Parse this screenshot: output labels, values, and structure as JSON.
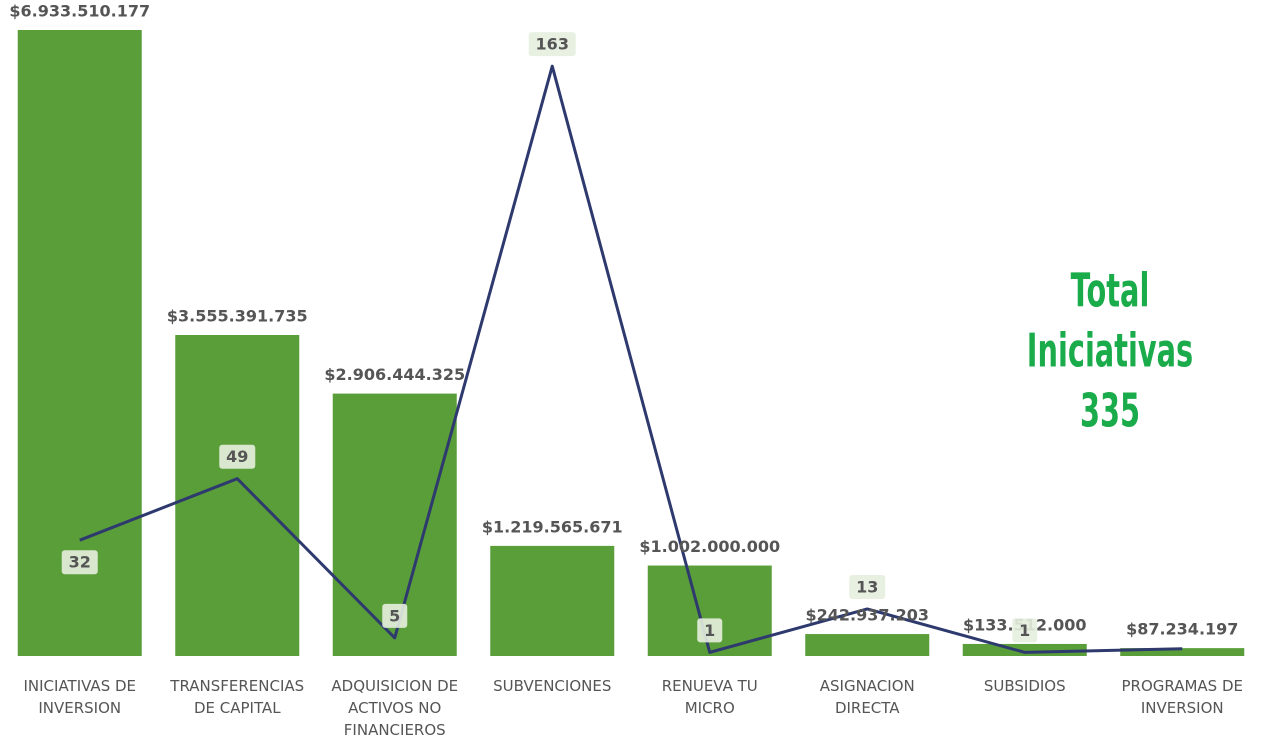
{
  "chart_data": {
    "type": "bar-line",
    "categories": [
      "INICIATIVAS DE INVERSION",
      "TRANSFERENCIAS DE CAPITAL",
      "ADQUISICION DE ACTIVOS NO FINANCIEROS",
      "SUBVENCIONES",
      "RENUEVA TU MICRO",
      "ASIGNACION DIRECTA",
      "SUBSIDIOS",
      "PROGRAMAS DE INVERSION"
    ],
    "series": [
      {
        "type": "bar",
        "color": "#5a9e3a",
        "values": [
          6933510177,
          3555391735,
          2906444325,
          1219565671,
          1002000000,
          242937203,
          133512000,
          87234197
        ],
        "value_labels": [
          "$6.933.510.177",
          "$3.555.391.735",
          "$2.906.444.325",
          "$1.219.565.671",
          "$1.002.000.000",
          "$242.937.203",
          "$133.512.000",
          "$87.234.197"
        ]
      },
      {
        "type": "line",
        "axis": "y2",
        "color": "#2e3a6e",
        "values": [
          32,
          49,
          5,
          163,
          1,
          13,
          1,
          2
        ],
        "value_labels": [
          "32",
          "49",
          "5",
          "163",
          "1",
          "13",
          "1",
          null
        ]
      }
    ],
    "ylim": [
      0,
      6933510177
    ],
    "y2lim": [
      0,
      173
    ],
    "annotation": [
      "Total",
      "Iniciativas",
      "335"
    ]
  }
}
